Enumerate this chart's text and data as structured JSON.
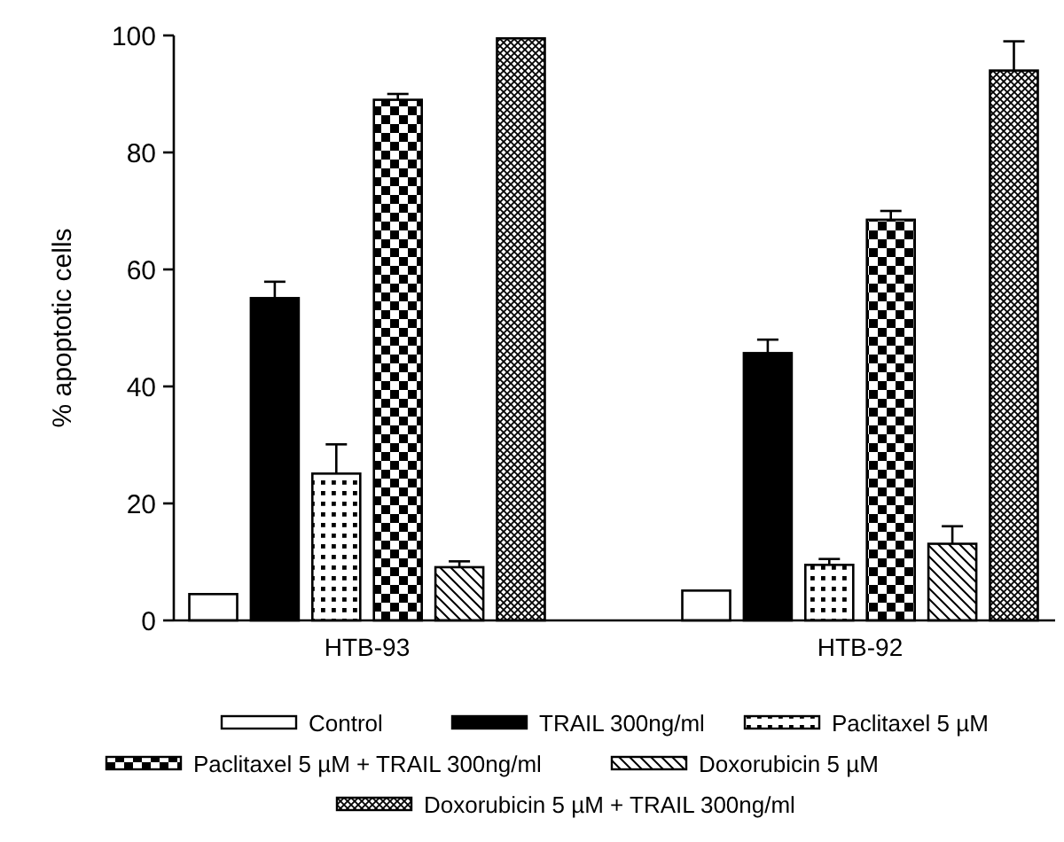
{
  "chart_data": {
    "type": "bar",
    "ylabel": "% apoptotic cells",
    "categories": [
      "HTB-93",
      "HTB-92"
    ],
    "ylim": [
      0,
      100
    ],
    "yticks": [
      0,
      20,
      40,
      60,
      80,
      100
    ],
    "grid": false,
    "legend": "bottom",
    "series": [
      {
        "name": "Control",
        "color": "#ffffff",
        "values": [
          4.5,
          5.1
        ],
        "errors": [
          null,
          null
        ]
      },
      {
        "name": "TRAIL 300ng/ml",
        "color": "#000000",
        "values": [
          55.1,
          45.7
        ],
        "errors": [
          2.8,
          2.3
        ]
      },
      {
        "name": "Paclitaxel 5 µM",
        "color": "#000000",
        "values": [
          25.1,
          9.5
        ],
        "errors": [
          5,
          1
        ]
      },
      {
        "name": "Paclitaxel 5 µM + TRAIL 300ng/ml",
        "color": "#000000",
        "values": [
          89,
          68.5
        ],
        "errors": [
          1,
          1.5
        ]
      },
      {
        "name": "Doxorubicin 5 µM",
        "color": "#000000",
        "values": [
          9.1,
          13.1
        ],
        "errors": [
          1,
          3
        ]
      },
      {
        "name": "Doxorubicin 5 µM + TRAIL 300ng/ml",
        "color": "#000000",
        "values": [
          99.5,
          94
        ],
        "errors": [
          null,
          5
        ]
      }
    ]
  }
}
